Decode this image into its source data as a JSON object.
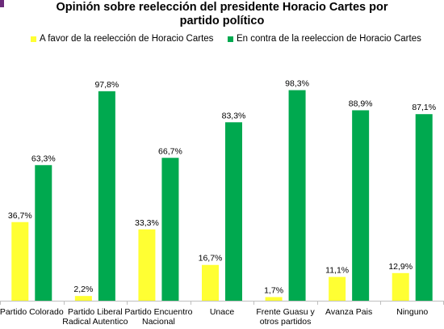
{
  "chart_data": {
    "type": "bar",
    "title": "Opinión sobre reelección del presidente Horacio Cartes por partido político",
    "title_lines": [
      "Opinión sobre reelección del presidente Horacio Cartes por",
      "partido político"
    ],
    "categories": [
      [
        "Partido Colorado"
      ],
      [
        "Partido Liberal",
        "Radical Autentico"
      ],
      [
        "Partido Encuentro",
        "Nacional"
      ],
      [
        "Unace"
      ],
      [
        "Frente Guasu y",
        "otros partidos"
      ],
      [
        "Avanza Pais"
      ],
      [
        "Ninguno"
      ]
    ],
    "series": [
      {
        "name": "A favor de la reelección de Horacio Cartes",
        "color": "#ffff33",
        "values": [
          36.7,
          2.2,
          33.3,
          16.7,
          1.7,
          11.1,
          12.9
        ],
        "labels": [
          "36,7%",
          "2,2%",
          "33,3%",
          "16,7%",
          "1,7%",
          "11,1%",
          "12,9%"
        ]
      },
      {
        "name": "En contra de la reeleccion de Horacio Cartes",
        "color": "#00a94f",
        "values": [
          63.3,
          97.8,
          66.7,
          83.3,
          98.3,
          88.9,
          87.1
        ],
        "labels": [
          "63,3%",
          "97,8%",
          "66,7%",
          "83,3%",
          "98,3%",
          "88,9%",
          "87,1%"
        ]
      }
    ],
    "ylim": [
      0,
      100
    ],
    "grid": false,
    "legend_position": "top"
  }
}
